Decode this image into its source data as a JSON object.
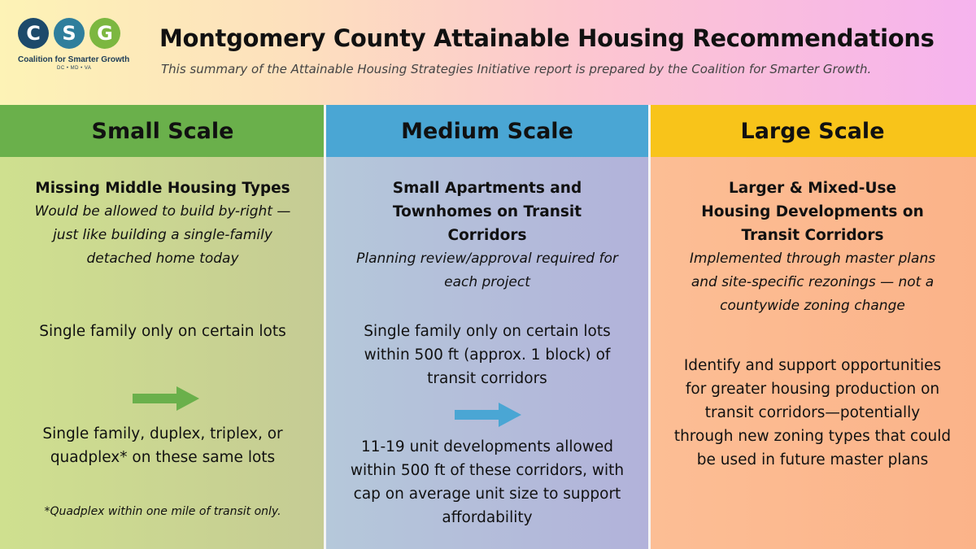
{
  "header": {
    "title": "Montgomery County Attainable Housing Recommendations",
    "subtitle": "This summary of the Attainable Housing Strategies Initiative report is prepared by the Coalition for Smarter Growth.",
    "logo": {
      "letters": [
        "C",
        "S",
        "G"
      ],
      "org_name": "Coalition for Smarter Growth",
      "regions": "DC • MD • VA",
      "colors": [
        "#1d4a6b",
        "#2f7e9c",
        "#7cb740"
      ]
    }
  },
  "columns": [
    {
      "heading": "Small Scale",
      "color": "#6ab04b",
      "subheading": "Missing Middle Housing Types",
      "description": "Would be allowed to build by-right — just like building a single-family detached home today",
      "before": "Single family only on certain lots",
      "after": "Single family, duplex, triplex, or quadplex* on these same lots",
      "footnote": "*Quadplex within one mile of transit only."
    },
    {
      "heading": "Medium Scale",
      "color": "#4aa6d4",
      "subheading": "Small Apartments and Townhomes on Transit Corridors",
      "description": "Planning review/approval required for each project",
      "before": "Single family only on certain lots within 500 ft (approx. 1 block) of transit corridors",
      "after": "11-19 unit developments allowed within 500 ft of these corridors, with cap on average unit size to support affordability"
    },
    {
      "heading": "Large Scale",
      "color": "#f8c41a",
      "subheading": "Larger & Mixed-Use Housing Developments on Transit Corridors",
      "description": "Implemented through master plans and site-specific rezonings — not a countywide zoning change",
      "body": "Identify and support opportunities for greater housing production on transit corridors—potentially through new zoning types that could be used in future master plans"
    }
  ],
  "icons": {
    "arrow_small": "right-arrow-icon",
    "arrow_medium": "right-arrow-icon",
    "arrow_small_color": "#6ab04b",
    "arrow_medium_color": "#4aa6d4"
  }
}
